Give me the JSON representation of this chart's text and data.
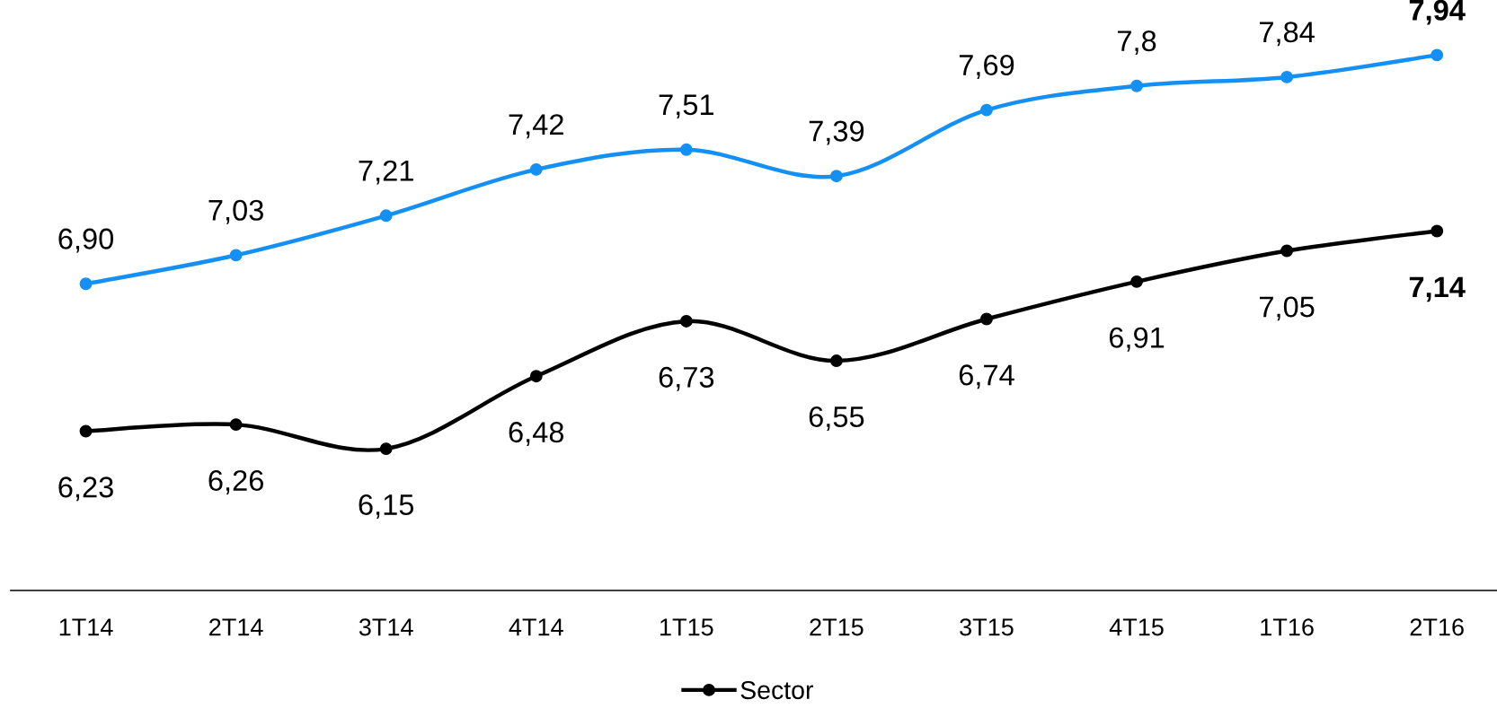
{
  "chart_data": {
    "type": "line",
    "categories": [
      "1T14",
      "2T14",
      "3T14",
      "4T14",
      "1T15",
      "2T15",
      "3T15",
      "4T15",
      "1T16",
      "2T16"
    ],
    "series": [
      {
        "color": "#1490f5",
        "values": [
          6.9,
          7.03,
          7.21,
          7.42,
          7.51,
          7.39,
          7.69,
          7.8,
          7.84,
          7.94
        ],
        "value_labels": [
          "6,90",
          "7,03",
          "7,21",
          "7,42",
          "7,51",
          "7,39",
          "7,69",
          "7,8",
          "7,84",
          "7,94"
        ]
      },
      {
        "name": "Sector",
        "color": "#000000",
        "values": [
          6.23,
          6.26,
          6.15,
          6.48,
          6.73,
          6.55,
          6.74,
          6.91,
          7.05,
          7.14
        ],
        "value_labels": [
          "6,23",
          "6,26",
          "6,15",
          "6,48",
          "6,73",
          "6,55",
          "6,74",
          "6,91",
          "7,05",
          "7,14"
        ]
      }
    ],
    "marker": "circle",
    "line_style": "solid",
    "legend": "bottom",
    "grid": false
  }
}
